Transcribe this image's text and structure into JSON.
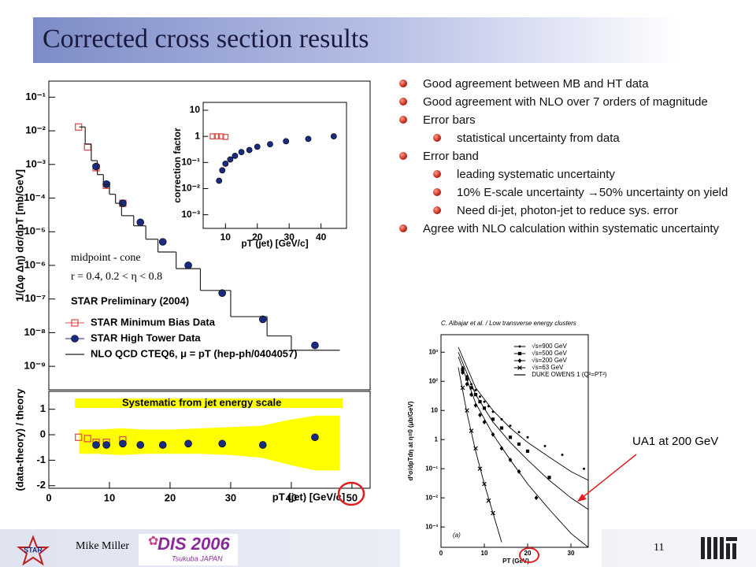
{
  "title": "Corrected cross section results",
  "bullets": [
    {
      "level": 1,
      "text": "Good agreement between MB and HT data"
    },
    {
      "level": 1,
      "text": "Good agreement with NLO over 7 orders of magnitude"
    },
    {
      "level": 1,
      "text": "Error bars"
    },
    {
      "level": 2,
      "text": "statistical uncertainty from data"
    },
    {
      "level": 1,
      "text": "Error band"
    },
    {
      "level": 2,
      "text": "leading systematic uncertainty"
    },
    {
      "level": 2,
      "text": "10% E-scale uncertainty →50% uncertainty on yield"
    },
    {
      "level": 2,
      "text": "Need di-jet, photon-jet to reduce sys. error"
    },
    {
      "level": 1,
      "text": "Agree with NLO calculation within systematic uncertainty"
    }
  ],
  "callout": "UA1 at 200 GeV",
  "footer": {
    "left_logo": "STAR",
    "author": "Mike Miller",
    "logo_title": "DIS 2006",
    "logo_subtitle": "Tsukuba JAPAN",
    "page": "11"
  },
  "chart_data": [
    {
      "type": "scatter",
      "log_y": true,
      "y_label": "1/(Δφ Δη) dσ/dpT [mb/GeV]",
      "annotations": [
        "midpoint - cone",
        "r = 0.4, 0.2 < η < 0.8",
        "STAR Preliminary (2004)"
      ],
      "xlim": [
        0,
        53
      ],
      "ylim": [
        2e-10,
        0.3
      ],
      "yticks": [
        {
          "value": 0.1,
          "label": "10⁻¹"
        },
        {
          "value": 0.01,
          "label": "10⁻²"
        },
        {
          "value": 0.001,
          "label": "10⁻³"
        },
        {
          "value": 0.0001,
          "label": "10⁻⁴"
        },
        {
          "value": 1e-05,
          "label": "10⁻⁵"
        },
        {
          "value": 1e-06,
          "label": "10⁻⁶"
        },
        {
          "value": 1e-07,
          "label": "10⁻⁷"
        },
        {
          "value": 1e-08,
          "label": "10⁻⁸"
        },
        {
          "value": 1e-09,
          "label": "10⁻⁹"
        }
      ],
      "legend": "lower-left",
      "series": [
        {
          "name": "STAR Minimum Bias Data",
          "color": "#e05050",
          "marker": "open-square",
          "x": [
            4.9,
            6.4,
            7.8,
            9.5,
            12.2
          ],
          "values": [
            0.013,
            0.0033,
            0.0008,
            0.00024,
            7e-05
          ]
        },
        {
          "name": "STAR High Tower Data",
          "color": "#1a2a80",
          "marker": "filled-circle",
          "x": [
            7.8,
            9.5,
            12.2,
            15.1,
            18.8,
            23,
            28.6,
            35.3,
            43.9
          ],
          "values": [
            0.00087,
            0.00026,
            7e-05,
            1.9e-05,
            5e-06,
            1e-06,
            1.5e-07,
            2.5e-08,
            4.2e-09
          ]
        },
        {
          "name": "NLO QCD CTEQ6, μ = pT (hep-ph/0404057)",
          "color": "#222222",
          "marker": "step",
          "bins": [
            5,
            6,
            7,
            8,
            9,
            10,
            11,
            12,
            14,
            16,
            18,
            21,
            25,
            30,
            36,
            40,
            48
          ],
          "values": [
            0.013,
            0.004,
            0.0013,
            0.0005,
            0.00025,
            0.00013,
            7e-05,
            3e-05,
            1.5e-05,
            6e-06,
            2.5e-06,
            8e-07,
            1.8e-07,
            3e-08,
            8e-09,
            3e-09
          ]
        }
      ]
    },
    {
      "type": "scatter",
      "y_label": "(data-theory) / theory",
      "x_label": "pT (jet) [GeV/c]",
      "xlim": [
        0,
        53
      ],
      "ylim": [
        -2.1,
        1.7
      ],
      "xticks": [
        0,
        10,
        20,
        30,
        40,
        50
      ],
      "yticks": [
        -2,
        -1,
        0,
        1
      ],
      "legend": "upper-left",
      "series": [
        {
          "name": "Systematic from jet energy scale",
          "color": "#ffff00",
          "marker": "band",
          "x": [
            5,
            8,
            12,
            16,
            20,
            25,
            30,
            35,
            40,
            44,
            48
          ],
          "upper": [
            0.2,
            0.2,
            0.25,
            0.2,
            0.2,
            0.25,
            0.3,
            0.35,
            0.6,
            0.75,
            0.75
          ],
          "lower": [
            -0.75,
            -0.75,
            -0.8,
            -0.75,
            -0.75,
            -0.75,
            -0.8,
            -0.9,
            -1.2,
            -1.4,
            -1.4
          ]
        },
        {
          "color": "#e05050",
          "marker": "open-square",
          "x": [
            4.9,
            6.4,
            7.8,
            9.5,
            12.2
          ],
          "values": [
            -0.1,
            -0.15,
            -0.3,
            -0.3,
            -0.2
          ]
        },
        {
          "color": "#1a2a80",
          "marker": "filled-circle",
          "x": [
            7.8,
            9.5,
            12.2,
            15.1,
            18.8,
            23,
            28.6,
            35.3,
            43.9
          ],
          "values": [
            -0.4,
            -0.4,
            -0.35,
            -0.4,
            -0.4,
            -0.35,
            -0.35,
            -0.4,
            -0.1
          ]
        }
      ]
    },
    {
      "type": "scatter",
      "log_y": true,
      "y_label": "correction factor",
      "x_label": "pT (jet) [GeV/c]",
      "xlim": [
        3,
        48
      ],
      "ylim": [
        0.0003,
        20
      ],
      "xticks": [
        10,
        20,
        30,
        40
      ],
      "yticks": [
        10,
        1,
        {
          "value": 0.1,
          "label": "10⁻¹"
        },
        {
          "value": 0.01,
          "label": "10⁻²"
        },
        {
          "value": 0.001,
          "label": "10⁻³"
        }
      ],
      "series": [
        {
          "color": "#e05050",
          "marker": "open-square",
          "x": [
            6,
            7.3,
            8.6,
            10
          ],
          "values": [
            1,
            1,
            1,
            0.95
          ]
        },
        {
          "color": "#1a2a80",
          "marker": "filled-circle",
          "x": [
            8,
            9,
            10,
            11.5,
            13,
            15,
            17.5,
            20,
            24,
            29,
            36,
            44
          ],
          "values": [
            0.02,
            0.05,
            0.09,
            0.13,
            0.18,
            0.25,
            0.3,
            0.4,
            0.5,
            0.65,
            0.8,
            1
          ]
        }
      ]
    },
    {
      "type": "scatter",
      "log_y": true,
      "y_label": "d²σ/dpTdη at η=0 (μb/GeV)",
      "x_label": "PT (GeV)",
      "annotations": [
        "C. Albajar et al. / Low transverse energy clusters",
        "(a)"
      ],
      "xlim": [
        0,
        34
      ],
      "ylim": [
        0.0002,
        4000
      ],
      "xticks": [
        0,
        10,
        20,
        30
      ],
      "yticks": [
        {
          "value": 1000,
          "label": "10³"
        },
        {
          "value": 100,
          "label": "10²"
        },
        10,
        1,
        {
          "value": 0.1,
          "label": "10⁻¹"
        },
        {
          "value": 0.01,
          "label": "10⁻²"
        },
        {
          "value": 0.001,
          "label": "10⁻³"
        }
      ],
      "legend": "upper-right",
      "series": [
        {
          "name": "√s=900 GeV",
          "color": "#000000",
          "marker": "dot",
          "x": [
            5,
            6,
            7,
            8,
            9,
            10,
            11,
            12,
            14,
            16,
            18,
            20,
            24,
            28,
            33
          ],
          "values": [
            300,
            150,
            80,
            50,
            30,
            20,
            14,
            9,
            5,
            3,
            1.8,
            1.2,
            0.6,
            0.3,
            0.1
          ]
        },
        {
          "name": "√s=500 GeV",
          "color": "#000000",
          "marker": "square",
          "x": [
            5,
            6,
            7,
            8,
            9,
            10,
            12,
            14,
            16,
            18,
            20,
            25
          ],
          "values": [
            250,
            120,
            60,
            35,
            20,
            12,
            5,
            2.5,
            1.2,
            0.7,
            0.4,
            0.05
          ]
        },
        {
          "name": "√s=200 GeV",
          "color": "#000000",
          "marker": "diamond",
          "x": [
            5,
            6,
            7,
            8,
            9,
            10,
            12,
            14,
            16,
            18,
            22
          ],
          "values": [
            200,
            80,
            35,
            15,
            7,
            4,
            1.5,
            0.5,
            0.2,
            0.08,
            0.01
          ]
        },
        {
          "name": "√s=63 GeV",
          "color": "#000000",
          "marker": "cross",
          "x": [
            5,
            6,
            7,
            8,
            9,
            10,
            11,
            12
          ],
          "values": [
            60,
            10,
            2,
            0.5,
            0.1,
            0.03,
            0.008,
            0.003
          ]
        },
        {
          "name": "DUKE OWENS 1 (Q²=PT²)",
          "color": "#000000",
          "marker": "curve",
          "x": [
            4,
            8,
            12,
            16,
            20,
            25,
            30,
            34
          ],
          "values": [
            1500,
            60,
            10,
            2.5,
            0.8,
            0.25,
            0.08,
            0.04
          ]
        },
        {
          "color": "#000000",
          "marker": "curve",
          "x": [
            4,
            8,
            12,
            16,
            20,
            25,
            30,
            34
          ],
          "values": [
            1000,
            35,
            4,
            0.8,
            0.2,
            0.04,
            0.01,
            0.004
          ]
        },
        {
          "color": "#000000",
          "marker": "curve",
          "x": [
            4,
            8,
            12,
            16,
            20,
            25,
            30,
            34
          ],
          "values": [
            700,
            18,
            1.5,
            0.2,
            0.03,
            0.004,
            0.0006,
            0.0002
          ]
        },
        {
          "color": "#000000",
          "marker": "curve",
          "x": [
            4,
            6,
            8,
            10,
            12,
            14
          ],
          "values": [
            300,
            8,
            0.4,
            0.03,
            0.003,
            0.0003
          ]
        }
      ]
    }
  ]
}
